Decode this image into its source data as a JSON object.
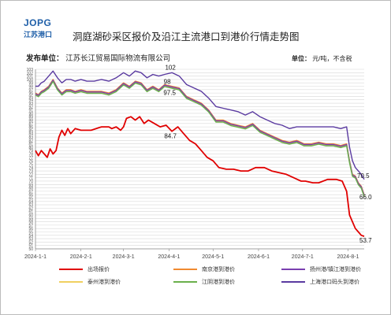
{
  "header": {
    "logo_mark": "JOPG",
    "logo_sub": "江苏港口",
    "title": "洞庭湖砂采区报价及沿江主流港口到港价行情走势图",
    "publisher_label": "发布单位：",
    "publisher_value": "江苏长江贸易国际物流有限公司",
    "unit_label": "单位：",
    "unit_value": "元/吨，不含税"
  },
  "legend": {
    "items": [
      {
        "label": "出场报价",
        "color": "#e00000"
      },
      {
        "label": "南京港到港价",
        "color": "#f08a30"
      },
      {
        "label": "扬州港/镇江港到港价",
        "color": "#7a3fb0"
      },
      {
        "label": "泰州港到港价",
        "color": "#f0d060"
      },
      {
        "label": "江阴港到港价",
        "color": "#6ab04c"
      },
      {
        "label": "上海港口码头到港价",
        "color": "#5a3aa0"
      }
    ]
  },
  "chart_data": {
    "type": "line",
    "title": "洞庭湖砂采区报价及沿江主流港口到港价行情走势图",
    "ylim": [
      50,
      103
    ],
    "y_ticks": [
      50,
      51,
      52,
      53,
      54,
      55,
      56,
      57,
      58,
      59,
      60,
      61,
      62,
      63,
      64,
      65,
      66,
      67,
      68,
      69,
      70,
      71,
      72,
      73,
      74,
      75,
      76,
      77,
      78,
      79,
      80,
      81,
      82,
      83,
      84,
      85,
      86,
      87,
      88,
      89,
      90,
      91,
      92,
      93,
      94,
      95,
      96,
      97,
      98,
      99,
      100,
      101,
      102,
      103
    ],
    "x_ticks": [
      "2024-1-1",
      "2024-2-1",
      "2024-3-1",
      "2024-4-1",
      "2024-5-1",
      "2024-6-1",
      "2024-7-1",
      "2024-8-1"
    ],
    "x_range": [
      "2024-01-01",
      "2024-08-12"
    ],
    "grid": true,
    "legend_position": "bottom",
    "annotations": [
      {
        "text": "102",
        "x": "2024-04-03",
        "y": 102
      },
      {
        "text": "98",
        "x": "2024-04-03",
        "y": 98
      },
      {
        "text": "97.5",
        "x": "2024-04-03",
        "y": 97.5
      },
      {
        "text": "84.7",
        "x": "2024-04-03",
        "y": 84.7
      },
      {
        "text": "70.5",
        "x": "2024-08-12",
        "y": 70.5
      },
      {
        "text": "66.0",
        "x": "2024-08-12",
        "y": 66.0
      },
      {
        "text": "53.7",
        "x": "2024-08-12",
        "y": 53.7
      }
    ],
    "series": [
      {
        "name": "出场报价",
        "x": [
          "2024-01-01",
          "2024-01-03",
          "2024-01-05",
          "2024-01-07",
          "2024-01-09",
          "2024-01-11",
          "2024-01-13",
          "2024-01-15",
          "2024-01-17",
          "2024-01-19",
          "2024-01-21",
          "2024-01-23",
          "2024-01-25",
          "2024-01-28",
          "2024-02-01",
          "2024-02-08",
          "2024-02-15",
          "2024-02-20",
          "2024-02-22",
          "2024-02-25",
          "2024-02-28",
          "2024-03-01",
          "2024-03-03",
          "2024-03-06",
          "2024-03-09",
          "2024-03-12",
          "2024-03-15",
          "2024-03-18",
          "2024-03-22",
          "2024-03-26",
          "2024-03-30",
          "2024-04-03",
          "2024-04-07",
          "2024-04-11",
          "2024-04-15",
          "2024-04-19",
          "2024-04-23",
          "2024-04-27",
          "2024-05-01",
          "2024-05-05",
          "2024-05-10",
          "2024-05-15",
          "2024-05-20",
          "2024-05-25",
          "2024-05-30",
          "2024-06-01",
          "2024-06-05",
          "2024-06-10",
          "2024-06-15",
          "2024-06-20",
          "2024-06-25",
          "2024-06-30",
          "2024-07-03",
          "2024-07-08",
          "2024-07-12",
          "2024-07-18",
          "2024-07-24",
          "2024-07-28",
          "2024-07-31",
          "2024-08-02",
          "2024-08-04",
          "2024-08-06",
          "2024-08-08",
          "2024-08-10",
          "2024-08-12"
        ],
        "values": [
          79.0,
          77.5,
          79.0,
          78.0,
          77.0,
          79.5,
          78.0,
          79.0,
          83.0,
          85.0,
          83.5,
          85.5,
          84.0,
          85.5,
          85.0,
          85.0,
          86.0,
          86.0,
          85.5,
          86.0,
          85.0,
          86.0,
          88.5,
          89.0,
          88.0,
          89.0,
          87.0,
          88.0,
          87.0,
          86.0,
          86.5,
          84.7,
          86.0,
          84.0,
          82.0,
          81.0,
          79.0,
          77.0,
          76.0,
          74.0,
          73.5,
          73.5,
          73.0,
          73.0,
          74.0,
          74.0,
          74.0,
          73.0,
          72.5,
          72.0,
          71.0,
          70.0,
          70.0,
          69.5,
          69.5,
          70.5,
          70.5,
          70.0,
          67.0,
          60.0,
          58.0,
          56.0,
          55.0,
          54.0,
          53.7
        ]
      },
      {
        "name": "南京港到港价",
        "x": [
          "2024-01-01",
          "2024-01-03",
          "2024-01-05",
          "2024-01-07",
          "2024-01-10",
          "2024-01-13",
          "2024-01-16",
          "2024-01-19",
          "2024-01-22",
          "2024-01-25",
          "2024-01-28",
          "2024-02-01",
          "2024-02-05",
          "2024-02-10",
          "2024-02-15",
          "2024-02-20",
          "2024-02-25",
          "2024-03-01",
          "2024-03-05",
          "2024-03-09",
          "2024-03-13",
          "2024-03-17",
          "2024-03-21",
          "2024-03-25",
          "2024-03-29",
          "2024-04-03",
          "2024-04-08",
          "2024-04-13",
          "2024-04-18",
          "2024-04-23",
          "2024-04-28",
          "2024-05-03",
          "2024-05-08",
          "2024-05-13",
          "2024-05-18",
          "2024-05-23",
          "2024-05-28",
          "2024-06-02",
          "2024-06-07",
          "2024-06-12",
          "2024-06-17",
          "2024-06-22",
          "2024-06-27",
          "2024-07-02",
          "2024-07-07",
          "2024-07-12",
          "2024-07-17",
          "2024-07-22",
          "2024-07-27",
          "2024-07-31",
          "2024-08-02",
          "2024-08-04",
          "2024-08-06",
          "2024-08-08",
          "2024-08-10",
          "2024-08-12"
        ],
        "values": [
          96.0,
          95.5,
          96.5,
          97.0,
          98.0,
          100.0,
          97.5,
          96.0,
          97.0,
          97.0,
          96.5,
          97.0,
          96.5,
          96.5,
          96.5,
          96.0,
          97.0,
          99.0,
          98.0,
          99.5,
          99.0,
          97.0,
          98.0,
          97.0,
          98.5,
          98.0,
          97.5,
          95.0,
          94.0,
          93.0,
          91.0,
          88.0,
          88.0,
          87.0,
          86.5,
          86.0,
          87.0,
          85.0,
          84.0,
          83.0,
          82.0,
          81.5,
          82.0,
          81.0,
          81.0,
          81.5,
          81.0,
          81.0,
          80.5,
          81.0,
          76.0,
          72.0,
          71.5,
          69.5,
          68.5,
          66.0
        ]
      },
      {
        "name": "扬州港/镇江港到港价",
        "x": [
          "2024-01-01",
          "2024-01-03",
          "2024-01-05",
          "2024-01-07",
          "2024-01-10",
          "2024-01-13",
          "2024-01-16",
          "2024-01-19",
          "2024-01-22",
          "2024-01-25",
          "2024-01-28",
          "2024-02-01",
          "2024-02-05",
          "2024-02-10",
          "2024-02-15",
          "2024-02-20",
          "2024-02-25",
          "2024-03-01",
          "2024-03-05",
          "2024-03-09",
          "2024-03-13",
          "2024-03-17",
          "2024-03-21",
          "2024-03-25",
          "2024-03-29",
          "2024-04-03",
          "2024-04-08",
          "2024-04-13",
          "2024-04-18",
          "2024-04-23",
          "2024-04-28",
          "2024-05-03",
          "2024-05-08",
          "2024-05-13",
          "2024-05-18",
          "2024-05-23",
          "2024-05-28",
          "2024-06-02",
          "2024-06-07",
          "2024-06-12",
          "2024-06-17",
          "2024-06-22",
          "2024-06-27",
          "2024-07-02",
          "2024-07-07",
          "2024-07-12",
          "2024-07-17",
          "2024-07-22",
          "2024-07-27",
          "2024-07-31",
          "2024-08-02",
          "2024-08-04",
          "2024-08-06",
          "2024-08-08",
          "2024-08-10",
          "2024-08-12"
        ],
        "values": [
          95.8,
          95.3,
          96.3,
          96.8,
          97.8,
          99.8,
          97.3,
          95.8,
          96.8,
          96.8,
          96.3,
          96.8,
          96.3,
          96.3,
          96.3,
          95.8,
          96.8,
          98.8,
          97.8,
          99.3,
          98.8,
          96.8,
          97.8,
          96.8,
          98.3,
          97.8,
          97.3,
          94.8,
          93.8,
          92.8,
          90.8,
          87.8,
          87.8,
          86.8,
          86.3,
          85.8,
          86.8,
          84.8,
          83.8,
          82.8,
          81.8,
          81.3,
          81.8,
          80.8,
          80.8,
          81.3,
          80.8,
          80.8,
          80.3,
          80.8,
          75.8,
          71.8,
          71.3,
          69.3,
          68.3,
          65.8
        ]
      },
      {
        "name": "泰州港到港价",
        "x": [
          "2024-01-01",
          "2024-01-03",
          "2024-01-05",
          "2024-01-07",
          "2024-01-10",
          "2024-01-13",
          "2024-01-16",
          "2024-01-19",
          "2024-01-22",
          "2024-01-25",
          "2024-01-28",
          "2024-02-01",
          "2024-02-05",
          "2024-02-10",
          "2024-02-15",
          "2024-02-20",
          "2024-02-25",
          "2024-03-01",
          "2024-03-05",
          "2024-03-09",
          "2024-03-13",
          "2024-03-17",
          "2024-03-21",
          "2024-03-25",
          "2024-03-29",
          "2024-04-03",
          "2024-04-08",
          "2024-04-13",
          "2024-04-18",
          "2024-04-23",
          "2024-04-28",
          "2024-05-03",
          "2024-05-08",
          "2024-05-13",
          "2024-05-18",
          "2024-05-23",
          "2024-05-28",
          "2024-06-02",
          "2024-06-07",
          "2024-06-12",
          "2024-06-17",
          "2024-06-22",
          "2024-06-27",
          "2024-07-02",
          "2024-07-07",
          "2024-07-12",
          "2024-07-17",
          "2024-07-22",
          "2024-07-27",
          "2024-07-31",
          "2024-08-02",
          "2024-08-04",
          "2024-08-06",
          "2024-08-08",
          "2024-08-10",
          "2024-08-12"
        ],
        "values": [
          95.6,
          95.1,
          96.1,
          96.6,
          97.6,
          99.6,
          97.1,
          95.6,
          96.6,
          96.6,
          96.1,
          96.6,
          96.1,
          96.1,
          96.1,
          95.6,
          96.6,
          98.6,
          97.6,
          99.1,
          98.6,
          96.6,
          97.6,
          96.6,
          98.1,
          97.6,
          97.1,
          94.6,
          93.6,
          92.6,
          90.6,
          87.6,
          87.6,
          86.6,
          86.1,
          85.6,
          86.6,
          84.6,
          83.6,
          82.6,
          81.6,
          81.1,
          81.6,
          80.6,
          80.6,
          81.1,
          80.6,
          80.6,
          80.1,
          80.6,
          75.6,
          71.6,
          71.1,
          69.1,
          68.1,
          65.6
        ]
      },
      {
        "name": "江阴港到港价",
        "x": [
          "2024-01-01",
          "2024-01-03",
          "2024-01-05",
          "2024-01-07",
          "2024-01-10",
          "2024-01-13",
          "2024-01-16",
          "2024-01-19",
          "2024-01-22",
          "2024-01-25",
          "2024-01-28",
          "2024-02-01",
          "2024-02-05",
          "2024-02-10",
          "2024-02-15",
          "2024-02-20",
          "2024-02-25",
          "2024-03-01",
          "2024-03-05",
          "2024-03-09",
          "2024-03-13",
          "2024-03-17",
          "2024-03-21",
          "2024-03-25",
          "2024-03-29",
          "2024-04-03",
          "2024-04-08",
          "2024-04-13",
          "2024-04-18",
          "2024-04-23",
          "2024-04-28",
          "2024-05-03",
          "2024-05-08",
          "2024-05-13",
          "2024-05-18",
          "2024-05-23",
          "2024-05-28",
          "2024-06-02",
          "2024-06-07",
          "2024-06-12",
          "2024-06-17",
          "2024-06-22",
          "2024-06-27",
          "2024-07-02",
          "2024-07-07",
          "2024-07-12",
          "2024-07-17",
          "2024-07-22",
          "2024-07-27",
          "2024-07-31",
          "2024-08-02",
          "2024-08-04",
          "2024-08-06",
          "2024-08-08",
          "2024-08-10",
          "2024-08-12"
        ],
        "values": [
          95.4,
          94.9,
          95.9,
          96.4,
          97.4,
          99.4,
          96.9,
          95.4,
          96.4,
          96.4,
          95.9,
          96.4,
          95.9,
          95.9,
          95.9,
          95.4,
          96.4,
          98.4,
          97.4,
          98.9,
          98.4,
          96.4,
          97.4,
          96.4,
          97.9,
          97.4,
          96.9,
          94.4,
          93.4,
          92.4,
          90.4,
          87.4,
          87.4,
          86.4,
          85.9,
          85.4,
          86.4,
          84.4,
          83.4,
          82.4,
          81.4,
          80.9,
          81.4,
          80.4,
          80.4,
          80.9,
          80.4,
          80.4,
          79.9,
          80.4,
          75.4,
          71.4,
          70.9,
          68.9,
          67.9,
          65.4
        ]
      },
      {
        "name": "上海港口码头到港价",
        "x": [
          "2024-01-01",
          "2024-01-03",
          "2024-01-05",
          "2024-01-07",
          "2024-01-10",
          "2024-01-13",
          "2024-01-16",
          "2024-01-19",
          "2024-01-22",
          "2024-01-25",
          "2024-01-28",
          "2024-02-01",
          "2024-02-05",
          "2024-02-10",
          "2024-02-15",
          "2024-02-20",
          "2024-02-25",
          "2024-03-01",
          "2024-03-05",
          "2024-03-09",
          "2024-03-13",
          "2024-03-17",
          "2024-03-21",
          "2024-03-25",
          "2024-03-29",
          "2024-04-03",
          "2024-04-08",
          "2024-04-13",
          "2024-04-18",
          "2024-04-23",
          "2024-04-28",
          "2024-05-03",
          "2024-05-08",
          "2024-05-13",
          "2024-05-18",
          "2024-05-23",
          "2024-05-28",
          "2024-06-02",
          "2024-06-07",
          "2024-06-12",
          "2024-06-17",
          "2024-06-22",
          "2024-06-27",
          "2024-07-02",
          "2024-07-07",
          "2024-07-12",
          "2024-07-17",
          "2024-07-22",
          "2024-07-27",
          "2024-07-31",
          "2024-08-02",
          "2024-08-04",
          "2024-08-06",
          "2024-08-08",
          "2024-08-10",
          "2024-08-12"
        ],
        "values": [
          98.0,
          98.0,
          99.0,
          99.5,
          101.0,
          102.5,
          100.5,
          99.0,
          100.0,
          100.0,
          99.5,
          100.0,
          99.5,
          99.5,
          100.0,
          99.5,
          100.5,
          102.0,
          101.0,
          102.5,
          102.0,
          100.5,
          101.5,
          101.0,
          101.5,
          102.0,
          101.0,
          98.5,
          97.5,
          96.5,
          94.5,
          92.0,
          91.5,
          91.0,
          90.5,
          89.5,
          90.5,
          89.0,
          88.0,
          87.0,
          86.5,
          85.5,
          86.0,
          86.0,
          86.0,
          86.0,
          86.0,
          86.0,
          85.5,
          86.0,
          80.0,
          76.0,
          74.0,
          73.0,
          72.0,
          70.5
        ]
      }
    ]
  }
}
